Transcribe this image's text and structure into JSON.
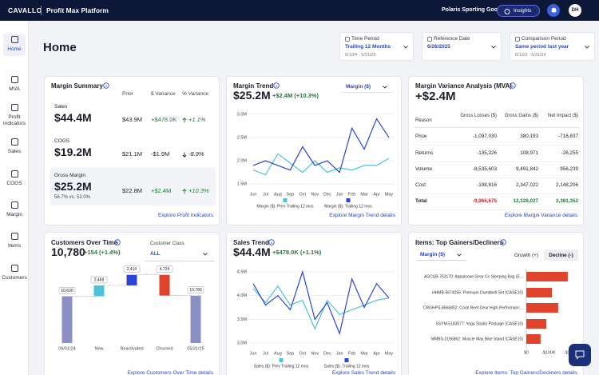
{
  "topbar": {
    "brand": "CAVALLO",
    "product": "Profit Max Platform",
    "company": "Polaris Sporting Goods",
    "insights": "Insights",
    "avatar": "DH"
  },
  "sidebar": [
    "Home",
    "MVA",
    "Profit Indicators",
    "Sales",
    "COGS",
    "Margin",
    "Items",
    "Customers"
  ],
  "page_title": "Home",
  "filters": [
    {
      "label": "Time Period",
      "value": "Trailing 12 Months",
      "sub": "6/1/24 - 5/31/25"
    },
    {
      "label": "Reference Date",
      "value": "6/26/2025"
    },
    {
      "label": "Comparison Period",
      "value": "Same period last year",
      "sub": "6/1/23 - 5/31/24"
    }
  ],
  "margin_summary": {
    "title": "Margin Summary",
    "columns": [
      "Prior",
      "$ Variance",
      "% Variance"
    ],
    "rows": [
      {
        "label": "Sales",
        "value": "$44.4M",
        "prior": "$43.9M",
        "variance": "+$478.0K",
        "pct": "+1.1%"
      },
      {
        "label": "COGS",
        "value": "$19.2M",
        "prior": "$21.1M",
        "variance": "-$1.9M",
        "pct": "-8.9%"
      },
      {
        "label": "Gross Margin",
        "value": "$25.2M",
        "sub": "56.7% vs. 52.0%",
        "prior": "$22.8M",
        "variance": "+$2.4M",
        "pct": "+10.3%"
      }
    ],
    "link": "Explore Profit Indicators"
  },
  "margin_trend": {
    "title": "Margin Trend",
    "value": "$25.2M",
    "change": "+$2.4M (+10.3%)",
    "dropdown": "Margin ($)",
    "link": "Explore Margin Trend details",
    "chart_data": {
      "type": "line",
      "categories": [
        "Jun",
        "Jul",
        "Aug",
        "Sep",
        "Oct",
        "Nov",
        "Dec",
        "Jan",
        "Feb",
        "Mar",
        "Apr",
        "May"
      ],
      "ylim": [
        1.4,
        3.1
      ],
      "yticks": [
        {
          "value": 1.5,
          "label": "1.5M"
        },
        {
          "value": 2.0,
          "label": "2.0M"
        },
        {
          "value": 2.5,
          "label": "2.5M"
        },
        {
          "value": 3.0,
          "label": "3.0M"
        }
      ],
      "grid": true,
      "series": [
        {
          "name": "Margin ($): Prev Trailing 12 mos",
          "color": "#4cc3dc",
          "values": [
            1.8,
            1.7,
            2.15,
            1.95,
            1.75,
            2.0,
            1.75,
            1.85,
            1.8,
            1.9,
            1.9,
            2.05
          ]
        },
        {
          "name": "Margin ($): Trailing 12 mos",
          "color": "#2c45d6",
          "values": [
            1.9,
            2.0,
            1.9,
            1.8,
            2.3,
            1.9,
            2.0,
            1.75,
            2.7,
            2.25,
            2.9,
            2.5
          ]
        }
      ]
    }
  },
  "mva": {
    "title": "Margin Variance Analysis (MVA)",
    "value": "+$2.4M",
    "columns": [
      "Reason",
      "Gross Losses ($)",
      "Gross Gains ($)",
      "Net Impact ($)"
    ],
    "rows": [
      [
        "Price",
        "-1,097,030",
        "380,193",
        "-716,837"
      ],
      [
        "Returns",
        "-135,226",
        "108,971",
        "-26,255"
      ],
      [
        "Volume",
        "-8,535,603",
        "9,491,842",
        "956,239"
      ],
      [
        "Cost",
        "-198,816",
        "2,347,022",
        "2,148,206"
      ],
      [
        "Total",
        "-9,966,675",
        "12,328,027",
        "2,361,352"
      ]
    ],
    "link": "Explore Margin Variance details"
  },
  "customers": {
    "title": "Customers Over Time",
    "value": "10,780",
    "change": "+154 (+1.4%)",
    "dropdown_label": "Customer Class",
    "dropdown": "ALL",
    "link": "Explore Customers Over Time details",
    "chart_data": {
      "type": "waterfall",
      "categories": [
        "06/01/24",
        "New",
        "Reactivated",
        "Churned",
        "05/31/25"
      ],
      "values": [
        10626,
        2468,
        2410,
        -4724,
        10780
      ],
      "value_labels": [
        "10,626",
        "2,468",
        "2,410",
        "4,724",
        "10,780"
      ],
      "measure": [
        "absolute",
        "relative",
        "relative",
        "relative",
        "total"
      ],
      "colors": [
        "#8a90c4",
        "#4cc3dc",
        "#2c45d6",
        "#e0432b",
        "#8a90c4"
      ],
      "ylim": [
        0,
        16000
      ]
    }
  },
  "sales_trend": {
    "title": "Sales Trend",
    "value": "$44.4M",
    "change": "+$478.0K (+1.1%)",
    "link": "Explore Sales Trend details",
    "chart_data": {
      "type": "line",
      "categories": [
        "Jun",
        "Jul",
        "Aug",
        "Sep",
        "Oct",
        "Nov",
        "Dec",
        "Jan",
        "Feb",
        "Mar",
        "Apr",
        "May"
      ],
      "ylim": [
        2.9,
        4.6
      ],
      "yticks": [
        {
          "value": 3.0,
          "label": "3.0M"
        },
        {
          "value": 3.5,
          "label": "3.5M"
        },
        {
          "value": 4.0,
          "label": "4.0M"
        },
        {
          "value": 4.5,
          "label": "4.5M"
        }
      ],
      "grid": true,
      "series": [
        {
          "name": "Sales ($): Prev Trailing 12 mos",
          "color": "#4cc3dc",
          "values": [
            4.15,
            3.85,
            4.2,
            3.8,
            3.9,
            3.3,
            3.9,
            3.6,
            3.7,
            3.8,
            3.9,
            3.95
          ]
        },
        {
          "name": "Sales ($): Trailing 12 mos",
          "color": "#2c45d6",
          "values": [
            4.25,
            3.8,
            4.0,
            3.7,
            4.5,
            3.5,
            3.85,
            3.2,
            4.35,
            3.75,
            4.25,
            3.95
          ]
        }
      ]
    }
  },
  "items": {
    "title": "Items: Top Gainers/Decliners",
    "dropdown": "Margin ($)",
    "tabs": [
      "Growth (+)",
      "Decline (-)"
    ],
    "active_tab": 1,
    "link": "Explore Items: Top Gainers/Decliners details",
    "chart_data": {
      "type": "bar",
      "orientation": "horizontal",
      "color": "#e0432b",
      "categories": [
        "AGCSB-763170: Appaloose Gear Co Sleeping Bag (E...",
        "HHMB-9674256: Premium Dumbbell Set (CASE10)",
        "CRGHPS-8566852: Coral Reef Gear High-Performanc...",
        "SSYM-5183077: Yoga Studio Package (CASE10)",
        "MMBS-2166862: Muscle Max Bike Stand (CASE10)"
      ],
      "values": [
        -186000,
        -115000,
        -143000,
        -90000,
        -64000
      ],
      "xlim": [
        0,
        -215000
      ],
      "xticks": [
        {
          "value": 0,
          "label": "$0"
        },
        {
          "value": -100000,
          "label": "-$100K"
        },
        {
          "value": -200000,
          "label": "-$200K"
        }
      ]
    }
  }
}
